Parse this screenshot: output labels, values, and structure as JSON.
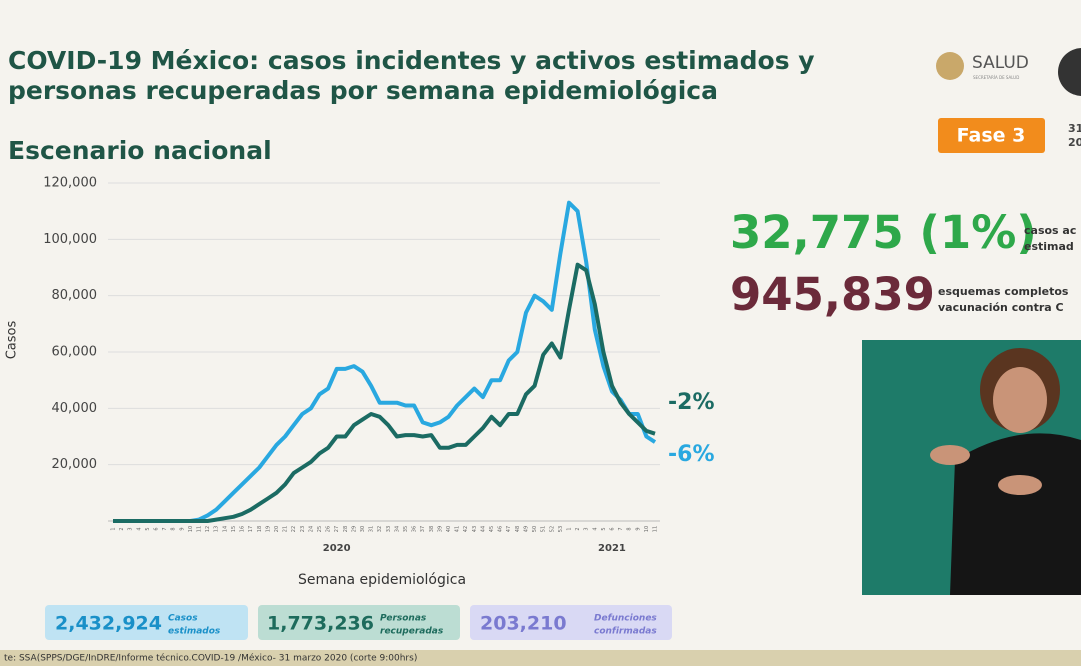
{
  "header": {
    "title": [
      "COVID-19 México: casos incidentes y activos estimados y",
      "personas recuperadas por semana epidemiológica"
    ],
    "subtitle": "Escenario nacional",
    "logo_text": "SALUD",
    "logo_subtext": "SECRETARÍA DE SALUD",
    "phase": "Fase 3",
    "date_fragment": [
      "31",
      "20"
    ]
  },
  "chart_data": {
    "type": "line",
    "categories": [
      "1",
      "2",
      "3",
      "4",
      "5",
      "6",
      "7",
      "8",
      "9",
      "10",
      "11",
      "12",
      "13",
      "14",
      "15",
      "16",
      "17",
      "18",
      "19",
      "20",
      "21",
      "22",
      "23",
      "24",
      "25",
      "26",
      "27",
      "28",
      "29",
      "30",
      "31",
      "32",
      "33",
      "34",
      "35",
      "36",
      "37",
      "38",
      "39",
      "40",
      "41",
      "42",
      "43",
      "44",
      "45",
      "46",
      "47",
      "48",
      "49",
      "50",
      "51",
      "52",
      "53",
      "1",
      "2",
      "3",
      "4",
      "5",
      "6",
      "7",
      "8",
      "9",
      "10",
      "11"
    ],
    "x_group_labels": [
      "2020",
      "2021"
    ],
    "x_label": "Semana epidemiológica",
    "y_label": "Casos",
    "series": [
      {
        "color": "#29a8e0",
        "values": [
          0,
          0,
          0,
          0,
          0,
          0,
          0,
          0,
          0,
          0,
          500,
          2000,
          4000,
          7000,
          10000,
          13000,
          16000,
          19000,
          23000,
          27000,
          30000,
          34000,
          38000,
          40000,
          45000,
          47000,
          54000,
          54000,
          55000,
          53000,
          48000,
          42000,
          42000,
          42000,
          41000,
          41000,
          35000,
          34000,
          35000,
          37000,
          41000,
          44000,
          47000,
          44000,
          50000,
          50000,
          57000,
          60000,
          74000,
          80000,
          78000,
          75000,
          95000,
          113000,
          110000,
          92000,
          68000,
          55000,
          46000,
          43000,
          38000,
          38000,
          30000,
          28000
        ]
      },
      {
        "color": "#1b6b63",
        "values": [
          0,
          0,
          0,
          0,
          0,
          0,
          0,
          0,
          0,
          0,
          0,
          0,
          500,
          1000,
          1500,
          2500,
          4000,
          6000,
          8000,
          10000,
          13000,
          17000,
          19000,
          21000,
          24000,
          26000,
          30000,
          30000,
          34000,
          36000,
          38000,
          37000,
          34000,
          30000,
          30500,
          30500,
          30000,
          30500,
          26000,
          26000,
          27000,
          27000,
          30000,
          33000,
          37000,
          34000,
          38000,
          38000,
          45000,
          48000,
          59000,
          63000,
          58000,
          75000,
          91000,
          89000,
          77000,
          60000,
          48000,
          42000,
          38000,
          35000,
          32000,
          31000
        ]
      }
    ],
    "annotations": [
      {
        "text": "-2%",
        "color": "#1b6b63"
      },
      {
        "text": "-6%",
        "color": "#29a8e0"
      }
    ],
    "ylim": [
      0,
      120000
    ],
    "yticks": [
      {
        "value": 20000,
        "label": "20,000"
      },
      {
        "value": 40000,
        "label": "40,000"
      },
      {
        "value": 60000,
        "label": "60,000"
      },
      {
        "value": 80000,
        "label": "80,000"
      },
      {
        "value": 100000,
        "label": "100,000"
      },
      {
        "value": 120000,
        "label": "120,000"
      }
    ],
    "grid": true
  },
  "highlights": [
    {
      "value": "32,775 (1%)",
      "label": [
        "casos ac",
        "estimad"
      ]
    },
    {
      "value": "945,839",
      "label": [
        "esquemas completos",
        "vacunación contra C"
      ]
    }
  ],
  "summary": [
    {
      "value": "2,432,924",
      "label": [
        "Casos",
        "estimados"
      ]
    },
    {
      "value": "1,773,236",
      "label": [
        "Personas",
        "recuperadas"
      ]
    },
    {
      "value": "203,210",
      "label": [
        "Defunciones",
        "confirmadas"
      ]
    }
  ],
  "footer": "te: SSA(SPPS/DGE/InDRE/Informe técnico.COVID-19 /México- 31 marzo 2020 (corte 9:00hrs)"
}
